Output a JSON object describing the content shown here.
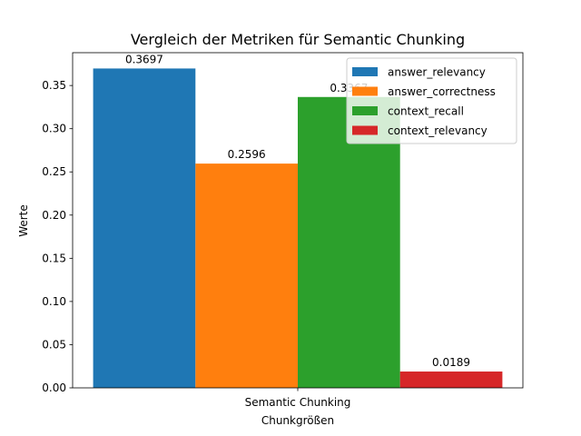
{
  "chart_data": {
    "type": "bar",
    "title": "Vergleich der Metriken für Semantic Chunking",
    "xlabel": "Chunkgrößen",
    "ylabel": "Werte",
    "categories": [
      "Semantic Chunking"
    ],
    "series": [
      {
        "name": "answer_relevancy",
        "values": [
          0.3697
        ],
        "label": "0.3697",
        "color": "#1f77b4"
      },
      {
        "name": "answer_correctness",
        "values": [
          0.2596
        ],
        "label": "0.2596",
        "color": "#ff7f0e"
      },
      {
        "name": "context_recall",
        "values": [
          0.3367
        ],
        "label": "0.3367",
        "color": "#2ca02c"
      },
      {
        "name": "context_relevancy",
        "values": [
          0.0189
        ],
        "label": "0.0189",
        "color": "#d62728"
      }
    ],
    "ylim": [
      0,
      0.388
    ],
    "yticks": [
      "0.00",
      "0.05",
      "0.10",
      "0.15",
      "0.20",
      "0.25",
      "0.30",
      "0.35"
    ],
    "grid": false,
    "legend_position": "top-right"
  }
}
